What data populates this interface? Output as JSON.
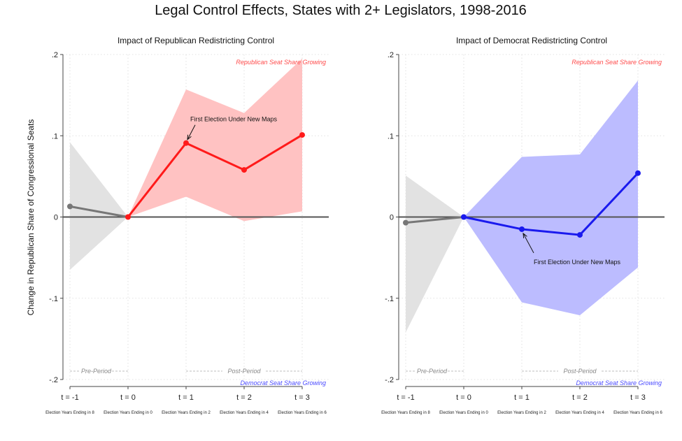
{
  "figure_title": "Legal Control Effects, States with 2+ Legislators, 1998-2016",
  "ylabel": "Change in Republican Share of Congressional Seats",
  "colors": {
    "pre": "#777777",
    "pre_band": "#e2e2e2",
    "rep": "#ff1a1a",
    "rep_band": "#ffc2c2",
    "dem": "#1a1aee",
    "dem_band": "#bcbcff",
    "rep_text": "#ff4a4a",
    "dem_text": "#4a4aff"
  },
  "chart_data": [
    {
      "type": "line",
      "title": "Impact of Republican Redistricting Control",
      "ylabel": "Change in Republican Share of Congressional Seats",
      "categories": [
        "t = -1",
        "t = 0",
        "t = 1",
        "t = 2",
        "t = 3"
      ],
      "category_notes": [
        "Election Years Ending in 8",
        "Election Years Ending in 0",
        "Election Years Ending in 2",
        "Election Years Ending in 4",
        "Election Years Ending in 6"
      ],
      "ylim": [
        -0.2,
        0.2
      ],
      "yticks": [
        ".2",
        ".1",
        "0",
        "-.1",
        "-.2"
      ],
      "grid": true,
      "pre_period": {
        "x": [
          "t = -1",
          "t = 0"
        ],
        "values": [
          0.013,
          0.0
        ],
        "ci_low": [
          -0.065,
          0.0
        ],
        "ci_high": [
          0.092,
          0.0
        ]
      },
      "post_period": {
        "x": [
          "t = 0",
          "t = 1",
          "t = 2",
          "t = 3"
        ],
        "values": [
          0.0,
          0.091,
          0.058,
          0.101
        ],
        "ci_low": [
          0.0,
          0.025,
          -0.005,
          0.007
        ],
        "ci_high": [
          0.0,
          0.157,
          0.128,
          0.195
        ]
      },
      "series_color": "rep",
      "annotations": {
        "top_right": "Republican Seat Share Growing",
        "bottom_right": "Democrat Seat Share Growing",
        "pre_label": "Pre-Period",
        "post_label": "Post-Period",
        "arrow_label": "First Election Under New Maps"
      }
    },
    {
      "type": "line",
      "title": "Impact of Democrat Redistricting Control",
      "ylabel": "",
      "categories": [
        "t = -1",
        "t = 0",
        "t = 1",
        "t = 2",
        "t = 3"
      ],
      "category_notes": [
        "Election Years Ending in 8",
        "Election Years Ending in 0",
        "Election Years Ending in 2",
        "Election Years Ending in 4",
        "Election Years Ending in 6"
      ],
      "ylim": [
        -0.2,
        0.2
      ],
      "yticks": [
        ".2",
        ".1",
        "0",
        "-.1",
        "-.2"
      ],
      "grid": true,
      "pre_period": {
        "x": [
          "t = -1",
          "t = 0"
        ],
        "values": [
          -0.007,
          0.0
        ],
        "ci_low": [
          -0.142,
          0.0
        ],
        "ci_high": [
          0.051,
          0.0
        ]
      },
      "post_period": {
        "x": [
          "t = 0",
          "t = 1",
          "t = 2",
          "t = 3"
        ],
        "values": [
          0.0,
          -0.015,
          -0.022,
          0.054
        ],
        "ci_low": [
          0.0,
          -0.105,
          -0.121,
          -0.062
        ],
        "ci_high": [
          0.0,
          0.074,
          0.077,
          0.168
        ]
      },
      "series_color": "dem",
      "annotations": {
        "top_right": "Republican Seat Share Growing",
        "bottom_right": "Democrat Seat Share Growing",
        "pre_label": "Pre-Period",
        "post_label": "Post-Period",
        "arrow_label": "First Election Under New Maps"
      }
    }
  ]
}
